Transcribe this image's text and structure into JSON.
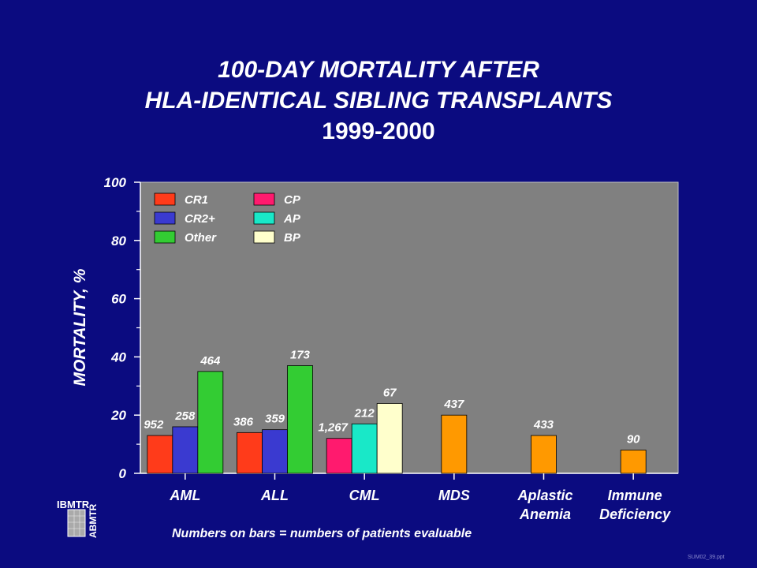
{
  "title": {
    "line1": "100-DAY MORTALITY AFTER",
    "line2": "HLA-IDENTICAL SIBLING TRANSPLANTS",
    "line3": "1999-2000"
  },
  "footnote": "Numbers on bars = numbers of patients evaluable",
  "slide_code": "SUM02_39.ppt",
  "logo": {
    "text_top": "IBMTR",
    "text_side": "ABMTR"
  },
  "colors": {
    "background": "#0b0b80",
    "plot_area": "#808080",
    "CR1": "#ff3b1a",
    "CR2+": "#3a3ad0",
    "Other": "#33cc33",
    "CP": "#ff1a6e",
    "AP": "#19e8c8",
    "BP": "#ffffcc",
    "single": "#ff9900"
  },
  "chart_data": {
    "type": "bar",
    "ylabel": "MORTALITY, %",
    "xlabel": "",
    "ylim": [
      0,
      100
    ],
    "yticks": [
      "0",
      "20",
      "40",
      "60",
      "80",
      "100"
    ],
    "grid": false,
    "legend_position": "top-left",
    "legend": [
      "CR1",
      "CR2+",
      "Other",
      "CP",
      "AP",
      "BP"
    ],
    "categories": [
      {
        "label": [
          "AML"
        ],
        "bars": [
          {
            "series": "CR1",
            "value": 13,
            "n": "952"
          },
          {
            "series": "CR2+",
            "value": 16,
            "n": "258"
          },
          {
            "series": "Other",
            "value": 35,
            "n": "464"
          }
        ]
      },
      {
        "label": [
          "ALL"
        ],
        "bars": [
          {
            "series": "CR1",
            "value": 14,
            "n": "386"
          },
          {
            "series": "CR2+",
            "value": 15,
            "n": "359"
          },
          {
            "series": "Other",
            "value": 37,
            "n": "173"
          }
        ]
      },
      {
        "label": [
          "CML"
        ],
        "bars": [
          {
            "series": "CP",
            "value": 12,
            "n": "1,267"
          },
          {
            "series": "AP",
            "value": 17,
            "n": "212"
          },
          {
            "series": "BP",
            "value": 24,
            "n": "67"
          }
        ]
      },
      {
        "label": [
          "MDS"
        ],
        "bars": [
          {
            "series": null,
            "value": 20,
            "n": "437"
          }
        ]
      },
      {
        "label": [
          "Aplastic",
          "Anemia"
        ],
        "bars": [
          {
            "series": null,
            "value": 13,
            "n": "433"
          }
        ]
      },
      {
        "label": [
          "Immune",
          "Deficiency"
        ],
        "bars": [
          {
            "series": null,
            "value": 8,
            "n": "90"
          }
        ]
      }
    ]
  }
}
